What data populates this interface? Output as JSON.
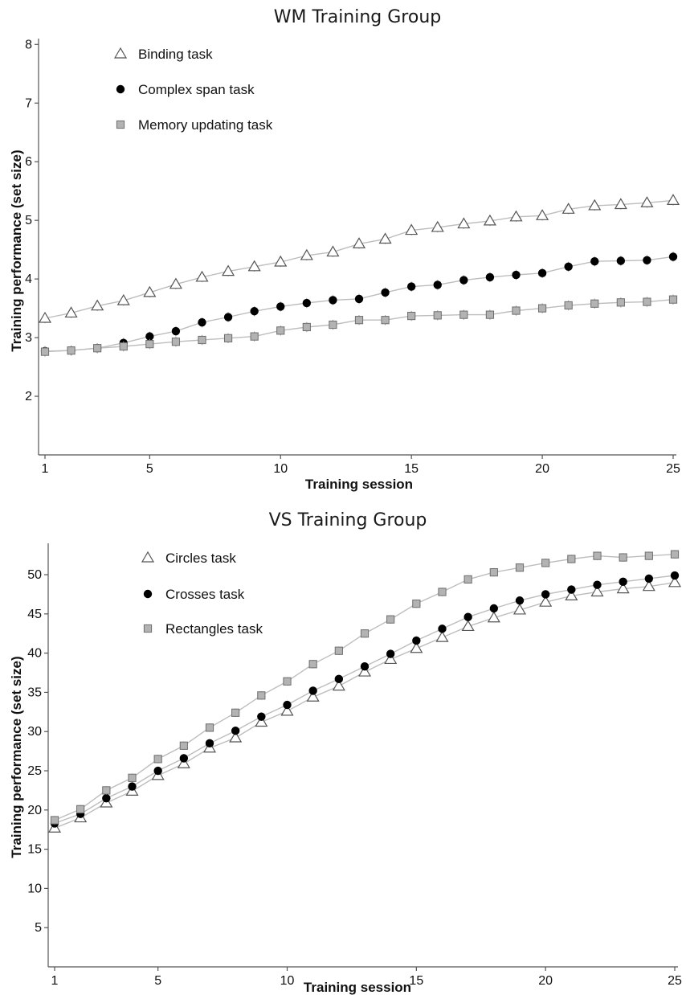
{
  "chart_data": [
    {
      "type": "line",
      "title": "WM Training Group",
      "xlabel": "Training session",
      "ylabel": "Training performance (set size)",
      "xlim": [
        1,
        25
      ],
      "ylim": [
        1,
        8.1
      ],
      "xticks": [
        1,
        5,
        10,
        15,
        20,
        25
      ],
      "xtick_labels": [
        "1",
        "5",
        "10",
        "15",
        "20",
        "25"
      ],
      "yticks": [
        2,
        3,
        4,
        5,
        6,
        7,
        8
      ],
      "ytick_labels": [
        "2",
        "3",
        "4",
        "5",
        "6",
        "7",
        "8"
      ],
      "grid": false,
      "legend_position": "top-left",
      "x": [
        1,
        2,
        3,
        4,
        5,
        6,
        7,
        8,
        9,
        10,
        11,
        12,
        13,
        14,
        15,
        16,
        17,
        18,
        19,
        20,
        21,
        22,
        23,
        24,
        25
      ],
      "series": [
        {
          "name": "Binding task",
          "marker": "triangle-open",
          "values": [
            3.33,
            3.42,
            3.54,
            3.63,
            3.77,
            3.91,
            4.03,
            4.13,
            4.21,
            4.29,
            4.4,
            4.46,
            4.6,
            4.68,
            4.83,
            4.88,
            4.94,
            4.99,
            5.06,
            5.08,
            5.19,
            5.25,
            5.27,
            5.3,
            5.34
          ]
        },
        {
          "name": "Complex span task",
          "marker": "circle-filled",
          "values": [
            2.77,
            2.78,
            2.82,
            2.91,
            3.02,
            3.11,
            3.26,
            3.35,
            3.45,
            3.53,
            3.59,
            3.64,
            3.66,
            3.77,
            3.87,
            3.9,
            3.98,
            4.03,
            4.07,
            4.1,
            4.21,
            4.3,
            4.31,
            4.32,
            4.38
          ]
        },
        {
          "name": "Memory updating task",
          "marker": "square-gray",
          "values": [
            2.76,
            2.78,
            2.82,
            2.85,
            2.89,
            2.93,
            2.96,
            2.99,
            3.02,
            3.12,
            3.18,
            3.22,
            3.3,
            3.3,
            3.37,
            3.38,
            3.39,
            3.39,
            3.46,
            3.5,
            3.55,
            3.58,
            3.6,
            3.61,
            3.65
          ]
        }
      ]
    },
    {
      "type": "line",
      "title": "VS Training Group",
      "xlabel": "Training session",
      "ylabel": "Training performance (set size)",
      "xlim": [
        1,
        25
      ],
      "ylim": [
        0,
        54
      ],
      "xticks": [
        1,
        5,
        10,
        15,
        20,
        25
      ],
      "xtick_labels": [
        "1",
        "5",
        "10",
        "15",
        "20",
        "25"
      ],
      "yticks": [
        5,
        10,
        15,
        20,
        25,
        30,
        35,
        40,
        45,
        50
      ],
      "ytick_labels": [
        "5",
        "10",
        "15",
        "20",
        "25",
        "30",
        "35",
        "40",
        "45",
        "50"
      ],
      "grid": false,
      "legend_position": "top-left",
      "x": [
        1,
        2,
        3,
        4,
        5,
        6,
        7,
        8,
        9,
        10,
        11,
        12,
        13,
        14,
        15,
        16,
        17,
        18,
        19,
        20,
        21,
        22,
        23,
        24,
        25
      ],
      "series": [
        {
          "name": "Circles task",
          "marker": "triangle-open",
          "values": [
            17.7,
            19.0,
            20.9,
            22.4,
            24.4,
            25.9,
            27.9,
            29.2,
            31.2,
            32.6,
            34.4,
            35.8,
            37.6,
            39.2,
            40.6,
            42.0,
            43.4,
            44.5,
            45.5,
            46.5,
            47.3,
            47.8,
            48.2,
            48.5,
            49.0
          ]
        },
        {
          "name": "Crosses task",
          "marker": "circle-filled",
          "values": [
            18.3,
            19.5,
            21.5,
            23.0,
            25.0,
            26.6,
            28.5,
            30.1,
            31.9,
            33.4,
            35.2,
            36.7,
            38.3,
            39.9,
            41.6,
            43.1,
            44.6,
            45.7,
            46.7,
            47.5,
            48.1,
            48.7,
            49.1,
            49.5,
            49.9
          ]
        },
        {
          "name": "Rectangles task",
          "marker": "square-gray",
          "values": [
            18.7,
            20.1,
            22.5,
            24.1,
            26.5,
            28.2,
            30.5,
            32.4,
            34.6,
            36.4,
            38.6,
            40.3,
            42.5,
            44.3,
            46.3,
            47.8,
            49.4,
            50.3,
            50.9,
            51.5,
            52.0,
            52.4,
            52.2,
            52.4,
            52.6
          ]
        }
      ]
    }
  ]
}
